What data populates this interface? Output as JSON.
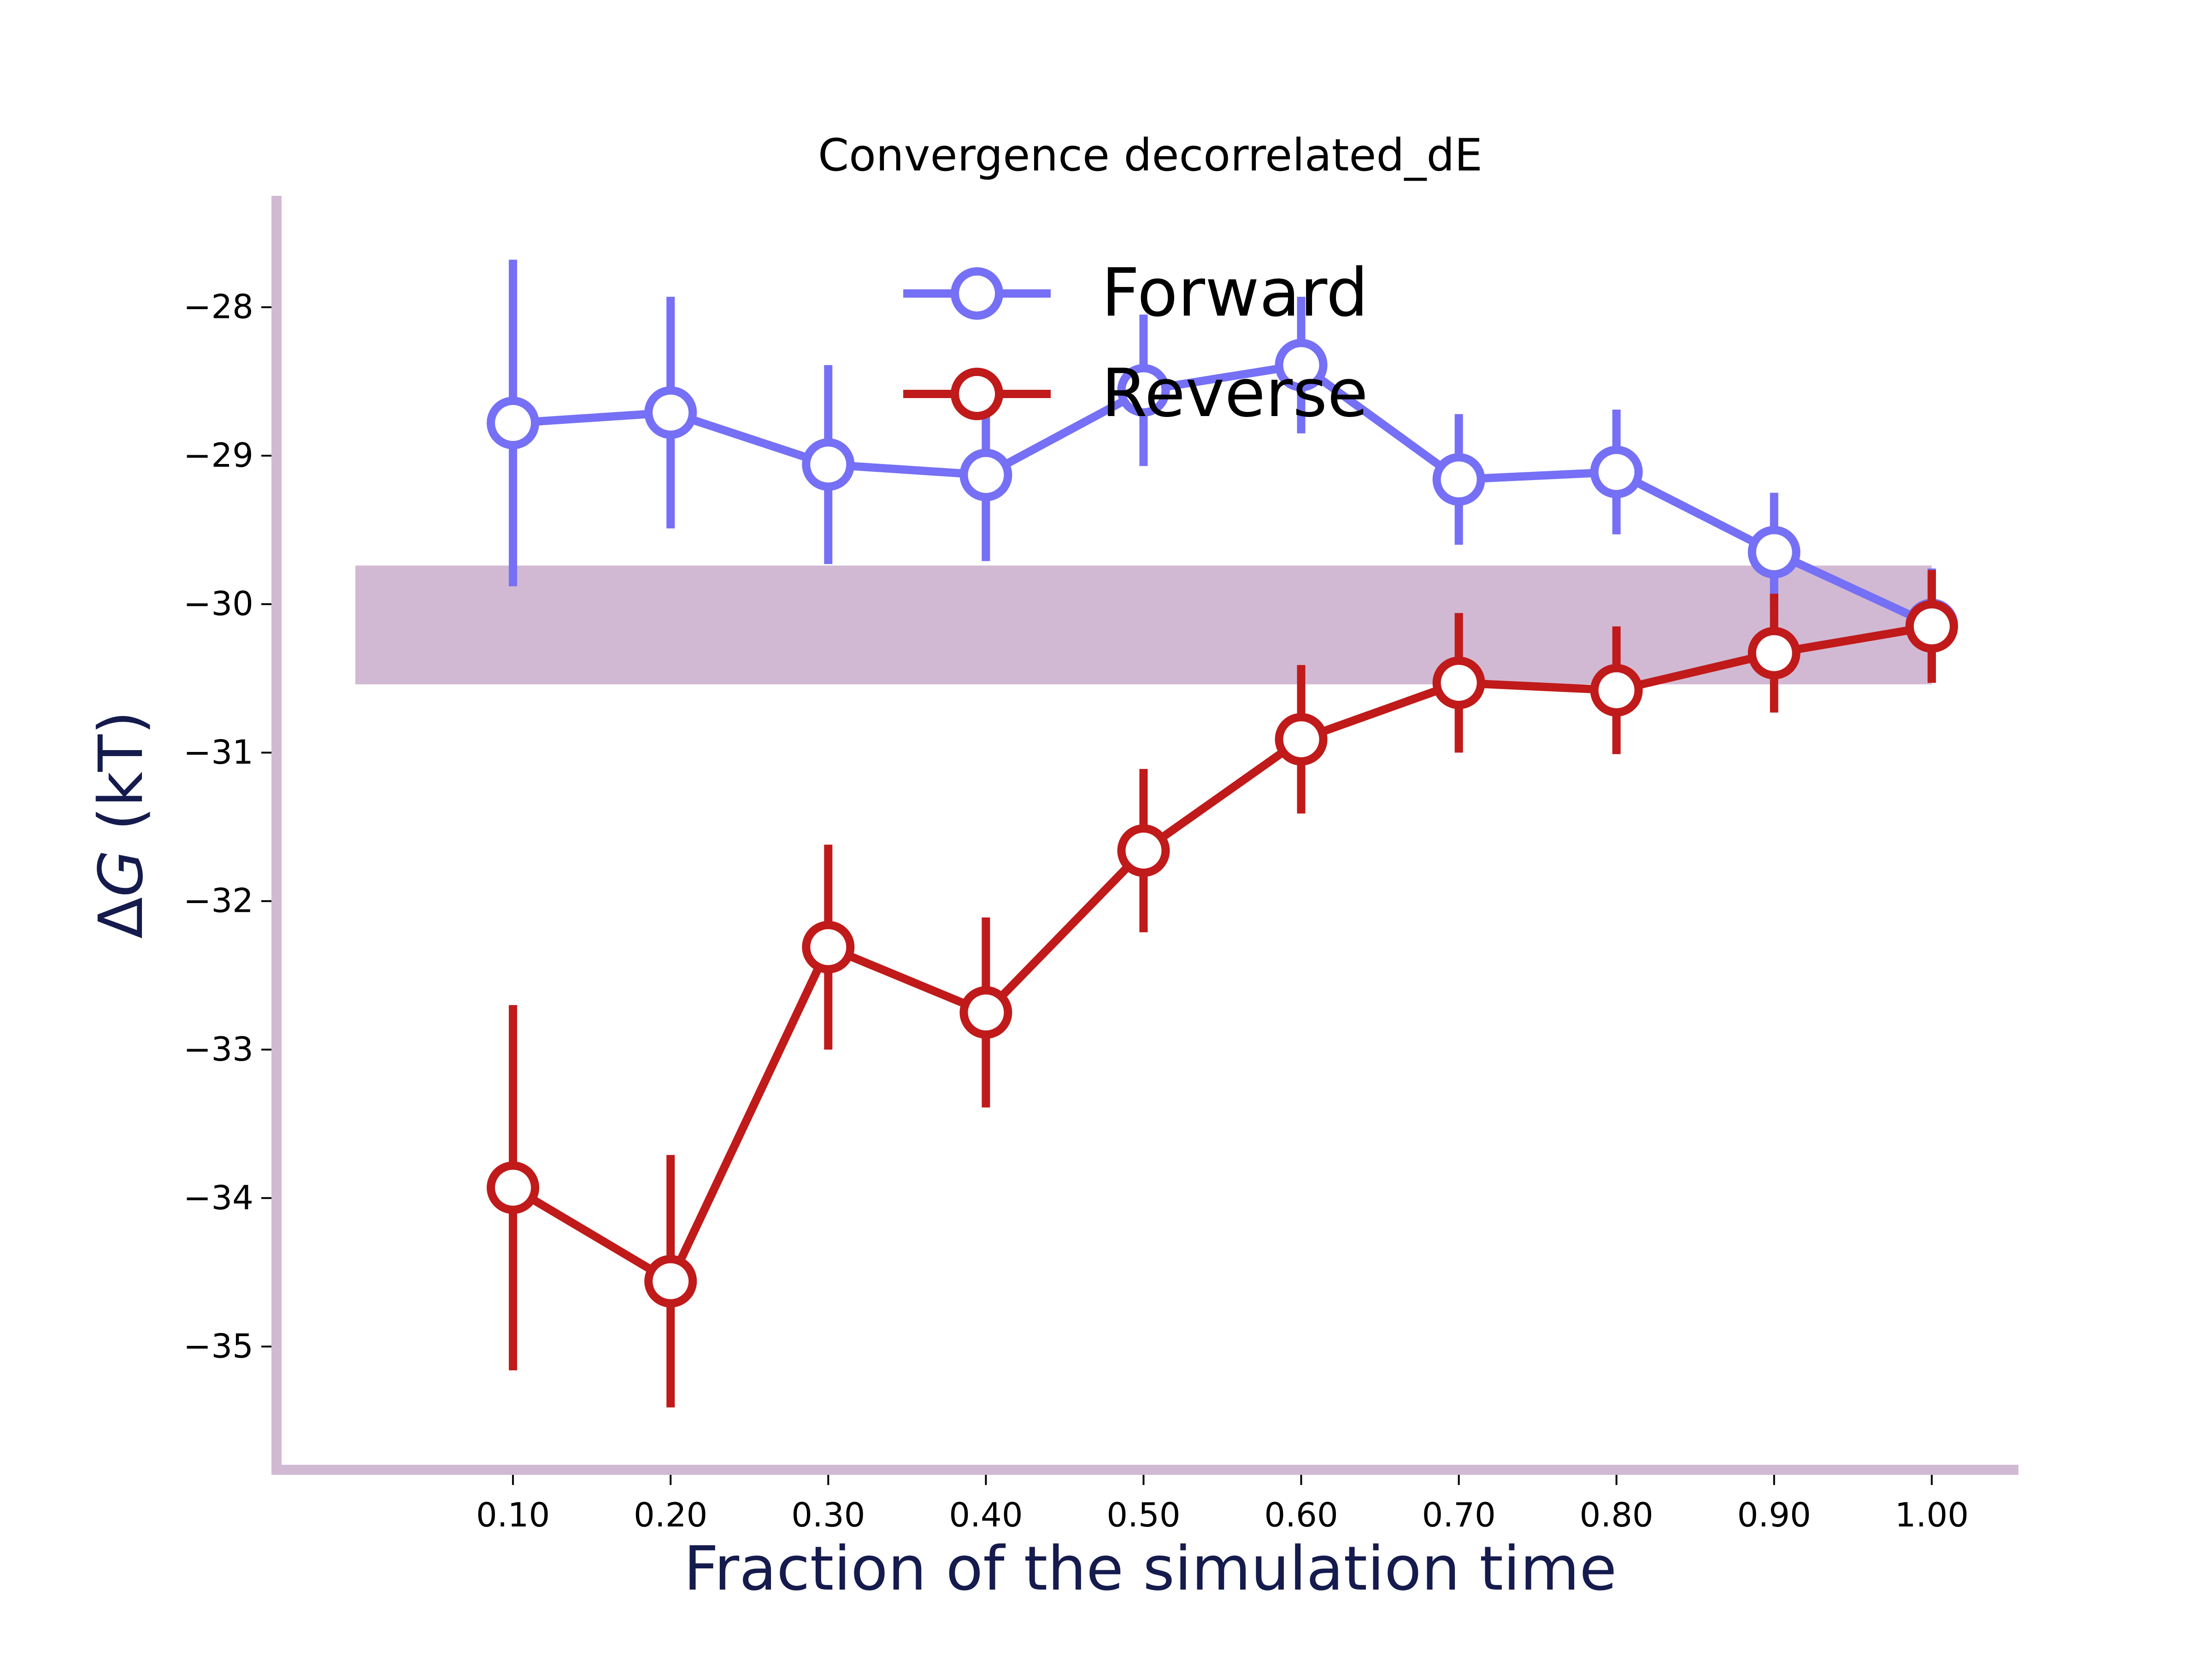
{
  "chart_data": {
    "type": "line",
    "title": "Convergence decorrelated_dE",
    "xlabel": "Fraction of the simulation time",
    "ylabel_delta": "Δ",
    "ylabel_symbol": "G",
    "ylabel_unit": " (kT)",
    "x": [
      0.1,
      0.2,
      0.3,
      0.4,
      0.5,
      0.6,
      0.7,
      0.8,
      0.9,
      1.0
    ],
    "x_tick_labels": [
      "0.10",
      "0.20",
      "0.30",
      "0.40",
      "0.50",
      "0.60",
      "0.70",
      "0.80",
      "0.90",
      "1.00"
    ],
    "y_ticks": [
      -28,
      -29,
      -30,
      -31,
      -32,
      -33,
      -34,
      -35
    ],
    "y_tick_labels": [
      "−28",
      "−29",
      "−30",
      "−31",
      "−32",
      "−33",
      "−34",
      "−35"
    ],
    "xlim": [
      -0.05,
      1.055
    ],
    "ylim": [
      -35.83,
      -27.25
    ],
    "band": {
      "y_low": -30.54,
      "y_high": -29.74,
      "x_start": 0.0,
      "x_end": 1.0,
      "color": "#D2B9D3"
    },
    "series": [
      {
        "name": "Forward",
        "color": "#7570F5",
        "values": [
          -28.78,
          -28.71,
          -29.06,
          -29.13,
          -28.56,
          -28.39,
          -29.16,
          -29.11,
          -29.65,
          -30.14
        ],
        "errors": [
          1.1,
          0.78,
          0.67,
          0.58,
          0.51,
          0.46,
          0.44,
          0.42,
          0.4,
          0.38
        ]
      },
      {
        "name": "Reverse",
        "color": "#C01A1A",
        "values": [
          -33.93,
          -34.56,
          -32.31,
          -32.75,
          -31.66,
          -30.91,
          -30.53,
          -30.58,
          -30.33,
          -30.15
        ],
        "errors": [
          1.23,
          0.85,
          0.69,
          0.64,
          0.55,
          0.5,
          0.47,
          0.43,
          0.4,
          0.38
        ]
      }
    ],
    "legend_position": "top-center",
    "axis_color": "#D2B9D3",
    "label_color": "#151B4D",
    "grid": false
  }
}
